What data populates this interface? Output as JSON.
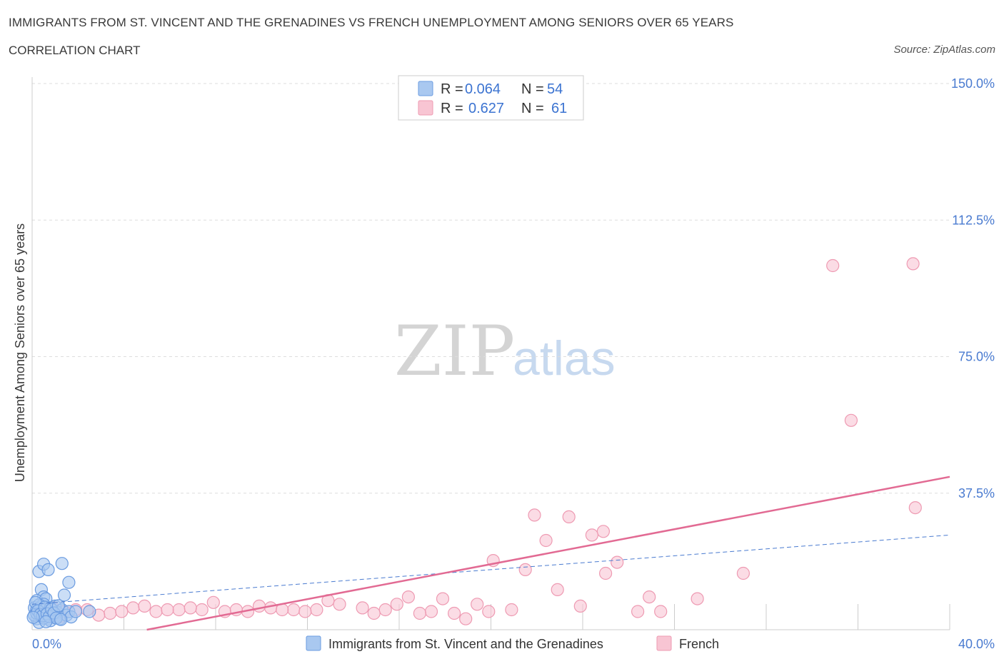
{
  "title": "IMMIGRANTS FROM ST. VINCENT AND THE GRENADINES VS FRENCH UNEMPLOYMENT AMONG SENIORS OVER 65 YEARS",
  "subtitle": "CORRELATION CHART",
  "source": "Source: ZipAtlas.com",
  "watermark": {
    "zip": "ZIP",
    "atlas": "atlas"
  },
  "colors": {
    "blue_fill": "#a9c8f0",
    "blue_stroke": "#6a9be0",
    "blue_line": "#4a7bd0",
    "pink_fill": "#f8c5d3",
    "pink_stroke": "#ee9ab2",
    "pink_line": "#e26a93",
    "grid": "#dddddd",
    "tick_label": "#4a7bd0"
  },
  "legend": {
    "rows": [
      {
        "r_label": "R =",
        "r_value": "0.064",
        "n_label": "N =",
        "n_value": "54",
        "series": "blue"
      },
      {
        "r_label": "R =",
        "r_value": "0.627",
        "n_label": "N =",
        "n_value": "61",
        "series": "pink"
      }
    ]
  },
  "chart_data": {
    "type": "scatter",
    "title": "IMMIGRANTS FROM ST. VINCENT AND THE GRENADINES VS FRENCH UNEMPLOYMENT AMONG SENIORS OVER 65 YEARS",
    "xlabel": "",
    "ylabel": "Unemployment Among Seniors over 65 years",
    "xlim": [
      0,
      40
    ],
    "ylim": [
      0,
      150
    ],
    "x_tick_labels": [
      "0.0%",
      "40.0%"
    ],
    "y_ticks": [
      37.5,
      75.0,
      112.5,
      150.0
    ],
    "y_tick_labels": [
      "37.5%",
      "75.0%",
      "112.5%",
      "150.0%"
    ],
    "grid": true,
    "legend_position": "top-center",
    "series": [
      {
        "name": "Immigrants from St. Vincent and the Grenadines",
        "color": "blue",
        "R": 0.064,
        "N": 54,
        "trend": {
          "x": [
            0,
            40
          ],
          "y": [
            7.0,
            26.0
          ]
        },
        "points": [
          [
            0.3,
            16.0
          ],
          [
            0.5,
            18.0
          ],
          [
            0.7,
            16.5
          ],
          [
            1.3,
            18.2
          ],
          [
            1.6,
            13.0
          ],
          [
            0.4,
            11.0
          ],
          [
            0.5,
            9.0
          ],
          [
            1.4,
            9.5
          ],
          [
            0.2,
            8.0
          ],
          [
            0.6,
            8.5
          ],
          [
            0.1,
            6.0
          ],
          [
            0.2,
            5.5
          ],
          [
            0.3,
            5.0
          ],
          [
            0.4,
            4.5
          ],
          [
            0.5,
            4.0
          ],
          [
            0.6,
            3.5
          ],
          [
            0.7,
            3.0
          ],
          [
            0.8,
            2.5
          ],
          [
            0.9,
            4.5
          ],
          [
            1.0,
            6.5
          ],
          [
            0.2,
            3.0
          ],
          [
            0.3,
            2.0
          ],
          [
            0.4,
            6.5
          ],
          [
            0.5,
            7.0
          ],
          [
            0.6,
            5.5
          ],
          [
            0.1,
            4.0
          ],
          [
            0.2,
            4.5
          ],
          [
            0.3,
            6.8
          ],
          [
            0.5,
            3.2
          ],
          [
            0.7,
            5.0
          ],
          [
            0.8,
            6.0
          ],
          [
            1.0,
            3.5
          ],
          [
            1.1,
            4.8
          ],
          [
            1.2,
            3.0
          ],
          [
            1.3,
            5.5
          ],
          [
            1.5,
            4.0
          ],
          [
            1.6,
            5.0
          ],
          [
            1.7,
            3.5
          ],
          [
            1.9,
            5.0
          ],
          [
            2.5,
            5.0
          ],
          [
            0.15,
            7.5
          ],
          [
            0.25,
            5.2
          ],
          [
            0.35,
            4.2
          ],
          [
            0.45,
            3.8
          ],
          [
            0.55,
            6.2
          ],
          [
            0.65,
            4.4
          ],
          [
            0.75,
            3.6
          ],
          [
            0.85,
            5.6
          ],
          [
            0.95,
            4.6
          ],
          [
            1.05,
            3.2
          ],
          [
            1.15,
            6.6
          ],
          [
            1.25,
            2.8
          ],
          [
            0.05,
            3.4
          ],
          [
            0.6,
            2.2
          ]
        ]
      },
      {
        "name": "French",
        "color": "pink",
        "R": 0.627,
        "N": 61,
        "trend": {
          "x": [
            5,
            40
          ],
          "y": [
            0,
            42.0
          ]
        },
        "points": [
          [
            34.9,
            100.0
          ],
          [
            38.4,
            100.5
          ],
          [
            35.7,
            57.5
          ],
          [
            38.5,
            33.5
          ],
          [
            21.9,
            31.5
          ],
          [
            23.4,
            31.0
          ],
          [
            24.9,
            27.0
          ],
          [
            24.4,
            26.0
          ],
          [
            22.4,
            24.5
          ],
          [
            20.1,
            19.0
          ],
          [
            21.5,
            16.5
          ],
          [
            25.5,
            18.5
          ],
          [
            25.0,
            15.5
          ],
          [
            31.0,
            15.5
          ],
          [
            22.9,
            11.0
          ],
          [
            26.9,
            9.0
          ],
          [
            29.0,
            8.5
          ],
          [
            23.9,
            6.5
          ],
          [
            26.4,
            5.0
          ],
          [
            27.4,
            5.0
          ],
          [
            20.9,
            5.5
          ],
          [
            19.4,
            7.0
          ],
          [
            19.9,
            5.0
          ],
          [
            18.4,
            4.5
          ],
          [
            18.9,
            3.0
          ],
          [
            17.4,
            5.0
          ],
          [
            17.9,
            8.5
          ],
          [
            16.4,
            9.0
          ],
          [
            16.9,
            4.5
          ],
          [
            15.4,
            5.5
          ],
          [
            15.9,
            7.0
          ],
          [
            14.4,
            6.0
          ],
          [
            14.9,
            4.5
          ],
          [
            13.4,
            7.0
          ],
          [
            12.4,
            5.5
          ],
          [
            12.9,
            8.0
          ],
          [
            11.4,
            5.5
          ],
          [
            11.9,
            5.0
          ],
          [
            10.4,
            6.0
          ],
          [
            10.9,
            5.5
          ],
          [
            9.4,
            5.0
          ],
          [
            9.9,
            6.5
          ],
          [
            8.4,
            5.0
          ],
          [
            8.9,
            5.5
          ],
          [
            7.4,
            5.5
          ],
          [
            7.9,
            7.5
          ],
          [
            6.4,
            5.5
          ],
          [
            6.9,
            6.0
          ],
          [
            5.4,
            5.0
          ],
          [
            5.9,
            5.5
          ],
          [
            4.4,
            6.0
          ],
          [
            4.9,
            6.5
          ],
          [
            3.4,
            4.5
          ],
          [
            3.9,
            5.0
          ],
          [
            2.4,
            5.5
          ],
          [
            2.9,
            4.0
          ],
          [
            1.4,
            5.0
          ],
          [
            1.9,
            5.5
          ],
          [
            0.9,
            6.0
          ],
          [
            0.5,
            4.5
          ],
          [
            1.2,
            3.5
          ]
        ]
      }
    ]
  },
  "bottom_legend": [
    {
      "label": "Immigrants from St. Vincent and the Grenadines",
      "series": "blue"
    },
    {
      "label": "French",
      "series": "pink"
    }
  ]
}
